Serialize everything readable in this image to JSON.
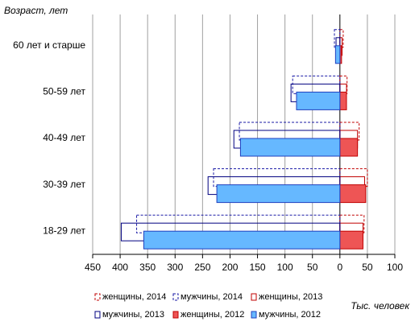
{
  "chart_data": {
    "type": "bar",
    "orientation": "horizontal",
    "y_label": "Возраст, лет",
    "x_label": "Тыс. человек",
    "categories": [
      "60 лет и старше",
      "50-59 лет",
      "40-49 лет",
      "30-39 лет",
      "18-29 лет"
    ],
    "series": [
      {
        "name": "женщины, 2014",
        "color": "#c00000",
        "style": "dashed",
        "values": [
          6,
          13,
          35,
          50,
          44
        ]
      },
      {
        "name": "мужчины, 2014",
        "color": "#1a1aa6",
        "style": "dashed",
        "values": [
          -10,
          -86,
          -183,
          -230,
          -370
        ]
      },
      {
        "name": "женщины, 2013",
        "color": "#c00000",
        "style": "outline",
        "values": [
          4,
          12,
          32,
          45,
          42
        ]
      },
      {
        "name": "мужчины, 2013",
        "color": "#000080",
        "style": "outline",
        "values": [
          -7,
          -89,
          -193,
          -240,
          -398
        ]
      },
      {
        "name": "женщины, 2012",
        "color": "#c00000",
        "style": "filled",
        "fill_color": "#ee5555",
        "values": [
          3,
          12,
          32,
          47,
          42
        ]
      },
      {
        "name": "мужчины, 2012",
        "color": "#1f3fbf",
        "style": "filled",
        "fill_color": "#66b8ff",
        "values": [
          -8,
          -79,
          -181,
          -224,
          -357
        ]
      }
    ],
    "xlim": [
      -450,
      100
    ],
    "xticks": [
      {
        "value": -450,
        "label": "450"
      },
      {
        "value": -400,
        "label": "400"
      },
      {
        "value": -350,
        "label": "350"
      },
      {
        "value": -300,
        "label": "300"
      },
      {
        "value": -250,
        "label": "250"
      },
      {
        "value": -200,
        "label": "200"
      },
      {
        "value": -150,
        "label": "150"
      },
      {
        "value": -100,
        "label": "100"
      },
      {
        "value": -50,
        "label": "50"
      },
      0,
      50,
      100
    ],
    "grid": true,
    "legend": "bottom"
  }
}
